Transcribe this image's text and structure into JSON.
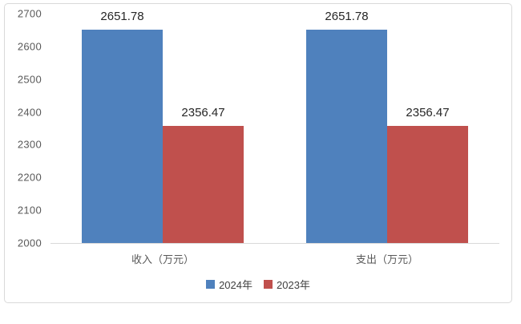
{
  "chart_data": {
    "type": "bar",
    "categories": [
      "收入（万元）",
      "支出（万元）"
    ],
    "series": [
      {
        "name": "2024年",
        "color": "#4F81BD",
        "values": [
          2651.78,
          2651.78
        ]
      },
      {
        "name": "2023年",
        "color": "#C0504D",
        "values": [
          2356.47,
          2356.47
        ]
      }
    ],
    "data_labels": [
      [
        "2651.78",
        "2356.47"
      ],
      [
        "2651.78",
        "2356.47"
      ]
    ],
    "ylim": [
      2000,
      2700
    ],
    "ytick_step": 100,
    "yticks": [
      "2700",
      "2600",
      "2500",
      "2400",
      "2300",
      "2200",
      "2100",
      "2000"
    ],
    "grid": false,
    "legend_position": "bottom",
    "title": "",
    "xlabel": "",
    "ylabel": ""
  },
  "colors": {
    "axis_line": "#d9d9d9",
    "border": "#d9d9d9",
    "tick_label": "#595959",
    "category_label": "#595959",
    "data_label": "#262626",
    "legend_text": "#404040",
    "background": "#ffffff"
  }
}
